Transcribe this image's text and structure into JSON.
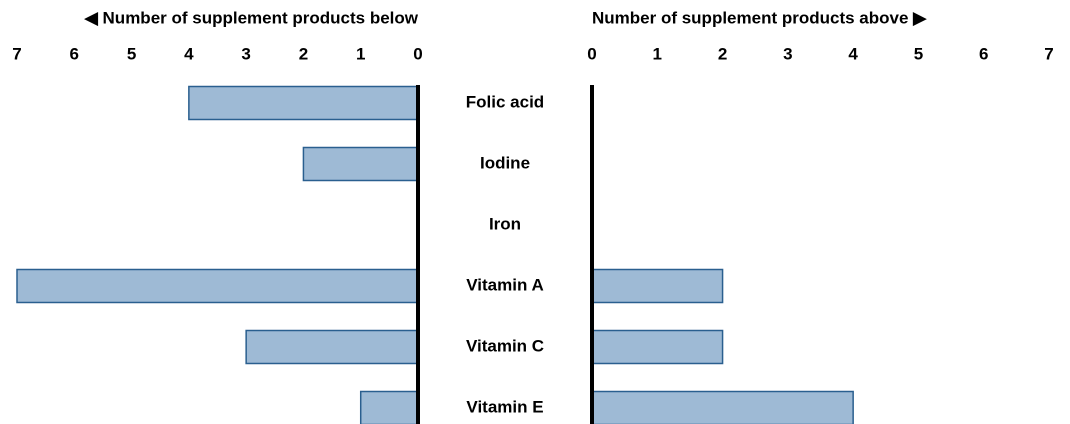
{
  "chart_data": {
    "type": "butterfly",
    "categories": [
      "Folic acid",
      "Iodine",
      "Iron",
      "Vitamin A",
      "Vitamin C",
      "Vitamin E"
    ],
    "series": [
      {
        "name": "◀ Number of supplement products below",
        "color": "#9ebad5",
        "values": [
          4,
          2,
          0,
          7,
          3,
          1
        ]
      },
      {
        "name": "Number of supplement products above ▶",
        "color": "#9ebad5",
        "values": [
          0,
          0,
          0,
          2,
          2,
          4
        ]
      }
    ],
    "xlim": [
      0,
      7
    ],
    "xticks": [
      0,
      1,
      2,
      3,
      4,
      5,
      6,
      7
    ],
    "edge_color": "#2a5f8f"
  }
}
